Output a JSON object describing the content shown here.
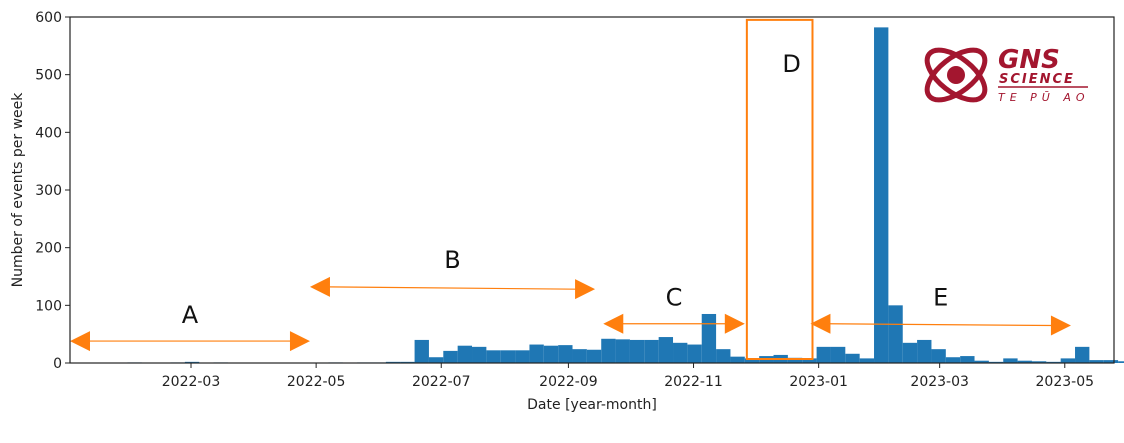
{
  "chart_data": {
    "type": "bar",
    "xlabel": "Date [year-month]",
    "ylabel": "Number of events per week",
    "ylim": [
      0,
      600
    ],
    "xlim": [
      "2022-01-01",
      "2023-05-25"
    ],
    "bin_start": "2022-01-01",
    "bin_days": 7,
    "values": [
      0,
      0,
      0,
      0,
      1,
      0,
      0,
      1,
      2,
      0,
      1,
      0,
      0,
      0,
      0,
      0,
      0,
      0,
      1,
      0,
      1,
      1,
      2,
      2,
      40,
      10,
      21,
      30,
      28,
      22,
      22,
      22,
      32,
      30,
      31,
      24,
      23,
      42,
      41,
      40,
      40,
      45,
      35,
      32,
      85,
      24,
      11,
      8,
      12,
      14,
      9,
      8,
      28,
      28,
      16,
      8,
      582,
      100,
      35,
      40,
      24,
      10,
      12,
      4,
      2,
      8,
      4,
      3,
      2,
      8,
      28,
      5,
      5,
      3,
      0,
      3,
      2,
      25,
      33,
      2,
      2
    ],
    "yticks": [
      "0",
      "100",
      "200",
      "300",
      "400",
      "500",
      "600"
    ],
    "xticks": [
      "2022-03",
      "2022-05",
      "2022-07",
      "2022-09",
      "2022-11",
      "2023-01",
      "2023-03",
      "2023-05"
    ],
    "bar_color": "#1f77b4",
    "annotations": {
      "color": "#ff7f0e",
      "regions": [
        {
          "label": "A",
          "start": "2022-01-01",
          "end": "2022-04-28",
          "y_arrow": 38,
          "y_label": 85
        },
        {
          "label": "B",
          "start": "2022-04-28",
          "end": "2022-09-14",
          "y_start": 132,
          "y_end": 128,
          "y_label": 180
        },
        {
          "label": "C",
          "start": "2022-09-18",
          "end": "2022-11-26",
          "y_arrow": 68,
          "y_label": 115
        },
        {
          "label": "E",
          "start": "2022-12-28",
          "end": "2023-05-04",
          "y_start": 68,
          "y_end": 65,
          "y_label": 115
        }
      ],
      "box": {
        "label": "D",
        "start": "2022-11-27",
        "end": "2022-12-29",
        "y_top": 595,
        "y_label": 520
      }
    }
  },
  "logo": {
    "name": "GNS",
    "sub": "SCIENCE",
    "tagline": "TE PŪ AO",
    "color": "#a3162f"
  }
}
